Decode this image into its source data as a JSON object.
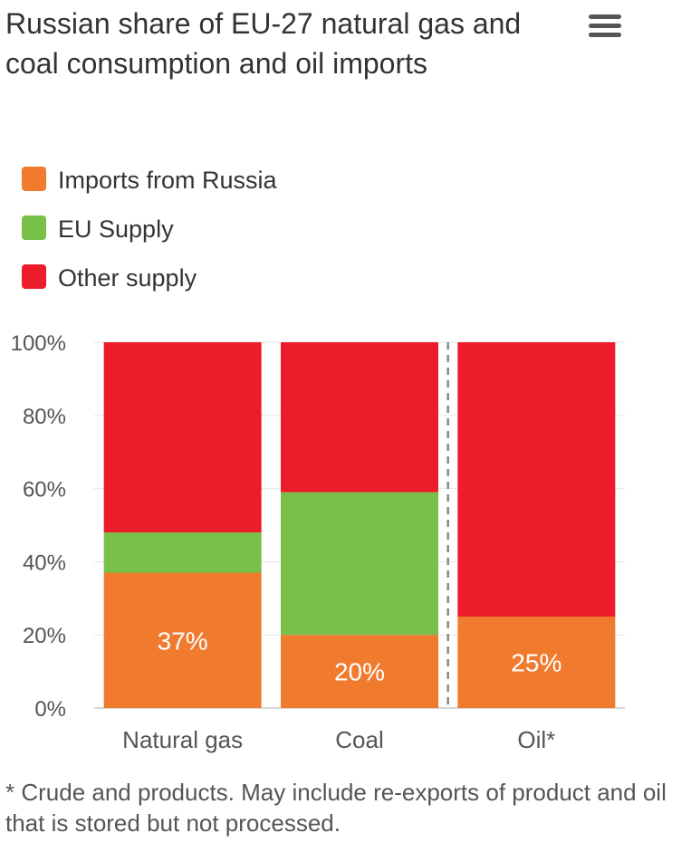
{
  "title": "Russian share of EU-27 natural gas and coal consumption and oil imports",
  "menu_icon": "hamburger-menu-icon",
  "legend": [
    {
      "label": "Imports from Russia",
      "color": "#F07B2F"
    },
    {
      "label": "EU Supply",
      "color": "#78C047"
    },
    {
      "label": "Other supply",
      "color": "#EC1C2B"
    }
  ],
  "footnote": "* Crude and products. May include re-exports of product and oil that is stored but not processed.",
  "chart_data": {
    "type": "bar",
    "stacked": true,
    "categories": [
      "Natural gas",
      "Coal",
      "Oil*"
    ],
    "series": [
      {
        "name": "Imports from Russia",
        "color": "#F07B2F",
        "values": [
          37,
          20,
          25
        ]
      },
      {
        "name": "EU Supply",
        "color": "#78C047",
        "values": [
          11,
          39,
          0
        ]
      },
      {
        "name": "Other supply",
        "color": "#EC1C2B",
        "values": [
          52,
          41,
          75
        ]
      }
    ],
    "data_labels": [
      "37%",
      "20%",
      "25%"
    ],
    "y_ticks": [
      "0%",
      "20%",
      "40%",
      "60%",
      "80%",
      "100%"
    ],
    "ylim": [
      0,
      100
    ],
    "grid": true,
    "legend_position": "top-left",
    "divider_before_category": "Oil*"
  }
}
